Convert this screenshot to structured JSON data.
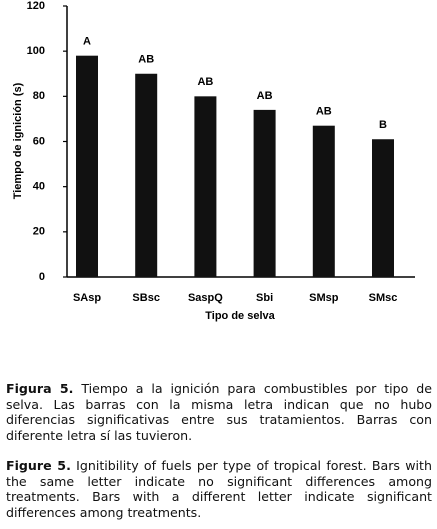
{
  "chart_data": {
    "type": "bar",
    "y_label": "Tiempo de ignición (s)",
    "x_label": "Tipo de selva",
    "categories": [
      "SAsp",
      "SBsc",
      "SaspQ",
      "Sbi",
      "SMsp",
      "SMsc"
    ],
    "values": [
      98,
      90,
      80,
      74,
      67,
      61
    ],
    "letters": [
      "A",
      "AB",
      "AB",
      "AB",
      "AB",
      "B"
    ],
    "color": "#111111",
    "ylim": [
      0,
      120
    ],
    "yticks": [
      0,
      20,
      40,
      60,
      80,
      100,
      120
    ],
    "grid": false
  },
  "caption_es": {
    "label": "Figura 5.",
    "text": "Tiempo a la ignición para combustibles por tipo de selva. Las barras con la misma letra indican que no hubo diferencias significativas entre sus tratamientos. Barras con diferente letra sí las tuvieron."
  },
  "caption_en": {
    "label": "Figure 5.",
    "text": "Ignitibility of fuels per type of tropical forest. Bars with the same letter indicate no significant differences among treatments. Bars with a different letter indicate significant differences among treatments."
  }
}
